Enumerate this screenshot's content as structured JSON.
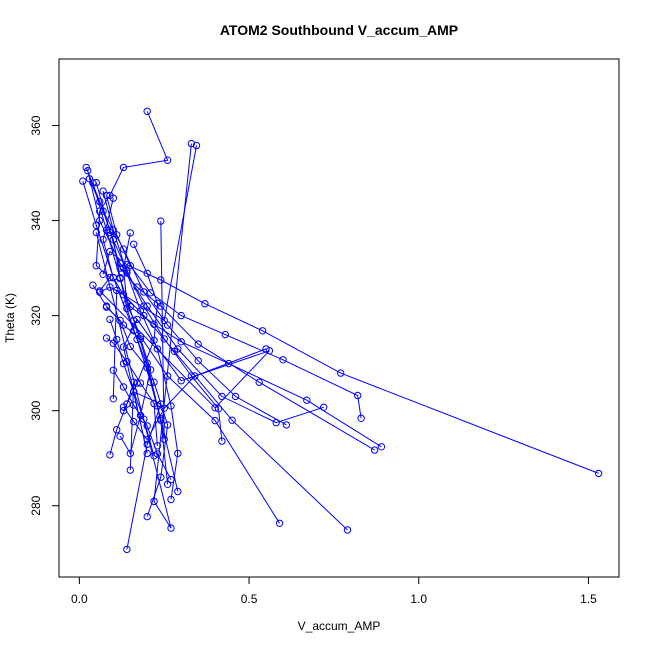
{
  "chart_data": {
    "type": "line",
    "title": "ATOM2 Southbound V_accum_AMP",
    "xlabel": "V_accum_AMP",
    "ylabel": "Theta (K)",
    "xlim": [
      -0.06,
      1.59
    ],
    "ylim": [
      265,
      374
    ],
    "xticks": [
      0.0,
      0.5,
      1.0,
      1.5
    ],
    "xtick_labels": [
      "0.0",
      "0.5",
      "1.0",
      "1.5"
    ],
    "yticks": [
      280,
      300,
      320,
      340,
      360
    ],
    "ytick_labels": [
      "280",
      "300",
      "320",
      "340",
      "360"
    ],
    "grid": false,
    "legend": "none",
    "color": "#0000ff",
    "marker": "open-circle",
    "series": [
      {
        "x": [
          0.2,
          0.26,
          0.13,
          0.09,
          0.06,
          0.05,
          0.09,
          0.06,
          0.4,
          0.56,
          0.3,
          0.17,
          0.13,
          0.2,
          0.16,
          0.24,
          0.2,
          0.14
        ],
        "y": [
          363,
          352.7,
          351.2,
          345.3,
          342,
          330.5,
          328,
          325.2,
          300.6,
          312.6,
          306.3,
          319.2,
          313.4,
          291,
          304,
          301.4,
          292.9,
          270.8
        ]
      },
      {
        "x": [
          0.33,
          0.22,
          0.27,
          0.05
        ],
        "y": [
          356.2,
          280.9,
          275.3,
          337.5
        ]
      },
      {
        "x": [
          0.345,
          0.25,
          0.11,
          0.1
        ],
        "y": [
          355.8,
          319,
          325.3,
          302.5
        ]
      },
      {
        "x": [
          0.02,
          0.06,
          0.1,
          0.12,
          0.14,
          0.17,
          0.21,
          0.24,
          0.26
        ],
        "y": [
          351.2,
          344,
          336,
          328,
          321.5,
          315,
          306,
          298,
          284.5
        ]
      },
      {
        "x": [
          0.025,
          0.06,
          0.12,
          0.2,
          0.29,
          0.42,
          0.58,
          0.72
        ],
        "y": [
          350.5,
          340,
          331,
          322,
          313,
          303,
          297.5,
          300.7
        ]
      },
      {
        "x": [
          0.01,
          0.05,
          0.1,
          0.16,
          0.22,
          0.26,
          0.24,
          0.2
        ],
        "y": [
          348.3,
          339,
          328,
          316.8,
          306,
          297,
          286,
          277.7
        ]
      },
      {
        "x": [
          0.03,
          0.07,
          0.13,
          0.19,
          0.26,
          0.35,
          0.46,
          0.61
        ],
        "y": [
          348.8,
          342,
          334,
          325,
          318,
          310.5,
          303,
          297
        ]
      },
      {
        "x": [
          0.04,
          0.08,
          0.12,
          0.16,
          0.2,
          0.23,
          0.25,
          0.24
        ],
        "y": [
          347.9,
          338,
          327.8,
          319,
          310,
          301,
          294,
          339.9
        ]
      },
      {
        "x": [
          0.05,
          0.09,
          0.14,
          0.19,
          0.25,
          0.33,
          0.41,
          0.42
        ],
        "y": [
          348,
          337.5,
          329.5,
          322,
          315.1,
          307.3,
          300.4,
          293.6
        ]
      },
      {
        "x": [
          0.07,
          0.1,
          0.14,
          0.18,
          0.23,
          0.27,
          0.29,
          0.27
        ],
        "y": [
          346.2,
          338,
          329,
          321,
          313,
          301,
          291,
          281.3
        ]
      },
      {
        "x": [
          0.1,
          0.07,
          0.1,
          0.15,
          0.22,
          0.3,
          0.44,
          0.67,
          0.89
        ],
        "y": [
          344.7,
          336,
          328,
          321.9,
          318.2,
          314.5,
          309.9,
          302.2,
          292.4
        ]
      },
      {
        "x": [
          0.08,
          0.11,
          0.15,
          0.21,
          0.3,
          0.43,
          0.6,
          0.82,
          0.83
        ],
        "y": [
          345.3,
          337,
          330.5,
          324.8,
          320,
          316,
          310.7,
          303.2,
          298.4
        ]
      },
      {
        "x": [
          0.07,
          0.09,
          0.14,
          0.24,
          0.37,
          0.54,
          0.77,
          1.53
        ],
        "y": [
          328.7,
          333.5,
          330.7,
          327.5,
          322.5,
          316.8,
          307.9,
          286.8
        ]
      },
      {
        "x": [
          0.09,
          0.12,
          0.17,
          0.24,
          0.35,
          0.53,
          0.87
        ],
        "y": [
          338,
          330,
          326,
          322,
          314,
          306,
          291.7
        ]
      },
      {
        "x": [
          0.15,
          0.13,
          0.14,
          0.18,
          0.26,
          0.4,
          0.59
        ],
        "y": [
          337.4,
          330,
          322.6,
          315.6,
          307.3,
          297.9,
          276.3
        ]
      },
      {
        "x": [
          0.16,
          0.2,
          0.23,
          0.22,
          0.17,
          0.13
        ],
        "y": [
          335,
          328.9,
          322.6,
          314.8,
          305.8,
          300
        ]
      },
      {
        "x": [
          0.04,
          0.08,
          0.13,
          0.18,
          0.21,
          0.18,
          0.15,
          0.12
        ],
        "y": [
          326.4,
          322,
          318,
          315.1,
          308.6,
          299,
          291,
          294.6
        ]
      },
      {
        "x": [
          0.06,
          0.09,
          0.13,
          0.19,
          0.28,
          0.45,
          0.79
        ],
        "y": [
          324.9,
          326,
          324.4,
          320,
          312.5,
          298,
          274.9
        ]
      },
      {
        "x": [
          0.08,
          0.12,
          0.15,
          0.2,
          0.24,
          0.29
        ],
        "y": [
          321.8,
          319,
          313.5,
          309,
          298.3,
          283
        ]
      },
      {
        "x": [
          0.08,
          0.1,
          0.14,
          0.18,
          0.22,
          0.23
        ],
        "y": [
          315.3,
          314.2,
          310.3,
          305.8,
          301.5,
          292.6
        ]
      },
      {
        "x": [
          0.09,
          0.11,
          0.13,
          0.16,
          0.19,
          0.22
        ],
        "y": [
          319.2,
          315,
          309.9,
          304,
          298.2,
          290.5
        ]
      },
      {
        "x": [
          0.09,
          0.11,
          0.14,
          0.16,
          0.15
        ],
        "y": [
          290.7,
          296,
          301.4,
          306,
          287.5
        ]
      },
      {
        "x": [
          0.1,
          0.13,
          0.16,
          0.2,
          0.23,
          0.27
        ],
        "y": [
          308.5,
          305,
          301.2,
          296.8,
          290.9,
          285.5
        ]
      },
      {
        "x": [
          0.13,
          0.16,
          0.2,
          0.25,
          0.34,
          0.55
        ],
        "y": [
          300.8,
          297.7,
          293.9,
          300.5,
          307.3,
          313
        ]
      }
    ]
  }
}
